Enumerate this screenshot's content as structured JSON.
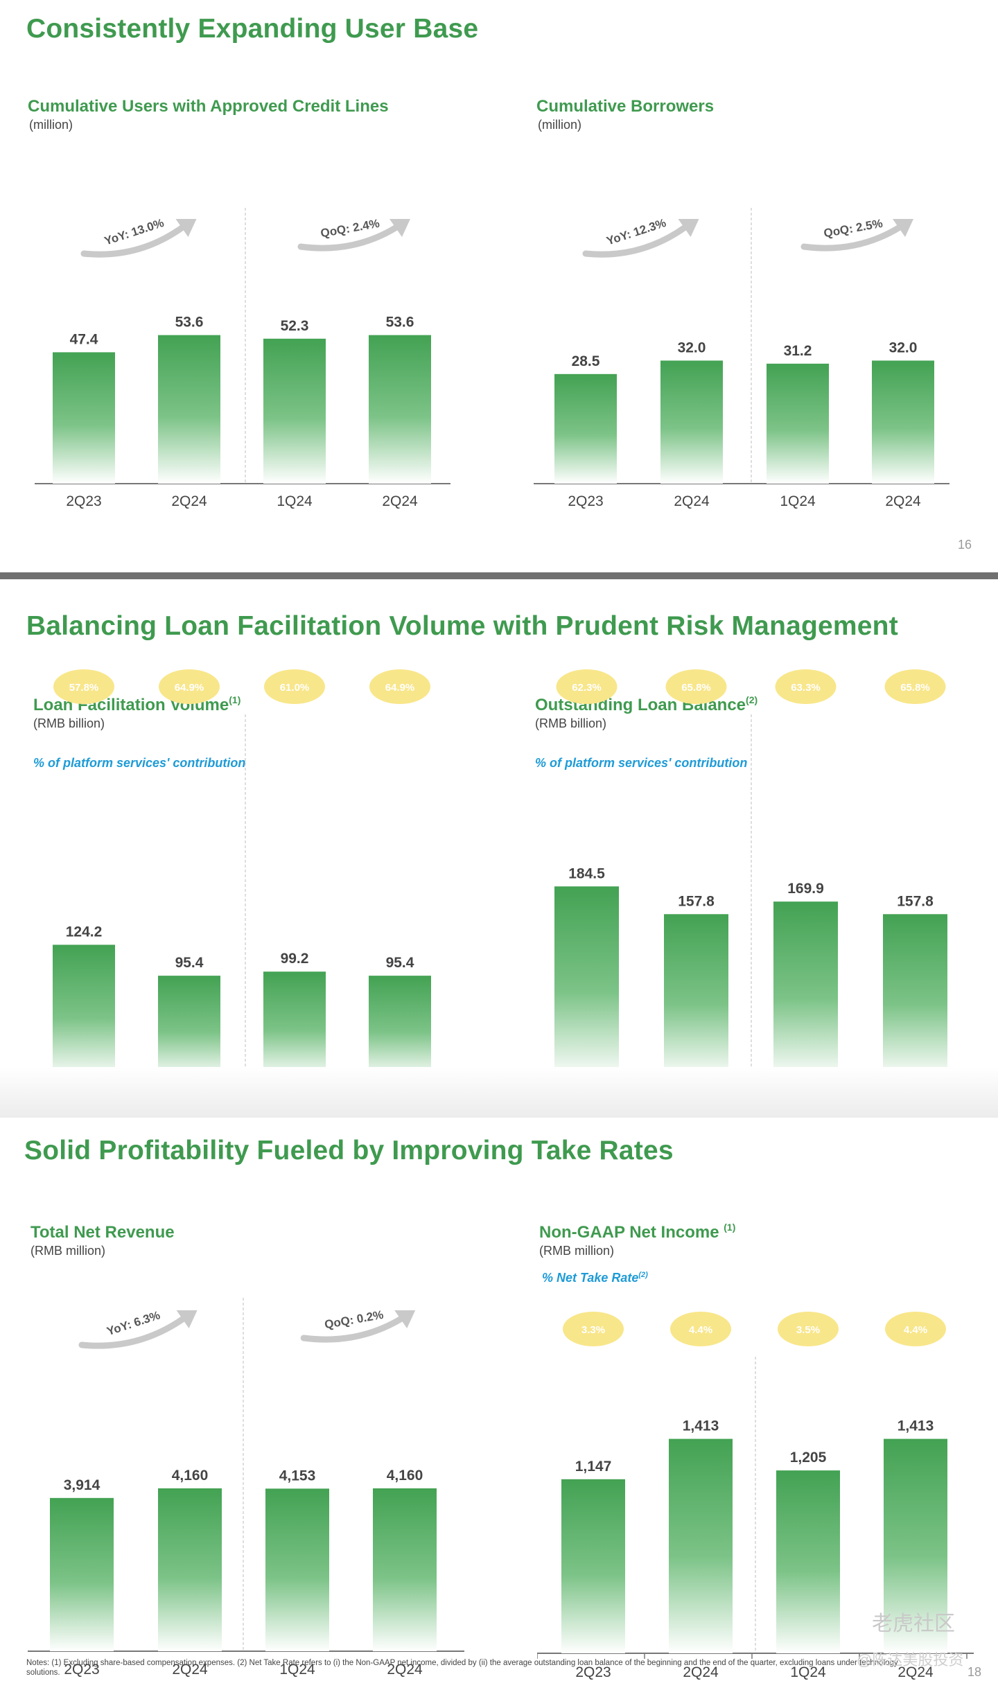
{
  "slides": [
    {
      "title": "Consistently Expanding User Base",
      "page_number": "16"
    },
    {
      "title": "Balancing Loan Facilitation Volume with Prudent Risk Management"
    },
    {
      "title": "Solid Profitability Fueled by Improving Take Rates",
      "page_number": "18"
    }
  ],
  "panels": [
    {
      "title": "Cumulative Users with Approved Credit Lines",
      "title_sup": "",
      "unit": "(million)",
      "metric_label": "",
      "metric_sup": ""
    },
    {
      "title": "Cumulative Borrowers",
      "title_sup": "",
      "unit": "(million)",
      "metric_label": "",
      "metric_sup": ""
    },
    {
      "title": "Loan Facilitation Volume",
      "title_sup": "(1)",
      "unit": "(RMB billion)",
      "metric_label": "% of platform services' contribution",
      "metric_sup": ""
    },
    {
      "title": "Outstanding Loan Balance",
      "title_sup": "(2)",
      "unit": "(RMB billion)",
      "metric_label": "% of platform services' contribution",
      "metric_sup": ""
    },
    {
      "title": "Total Net Revenue",
      "title_sup": "",
      "unit": "(RMB million)",
      "metric_label": "",
      "metric_sup": ""
    },
    {
      "title": "Non-GAAP Net Income",
      "title_sup": "(1)",
      "unit": "(RMB million)",
      "metric_label": "% Net Take Rate",
      "metric_sup": "(2)"
    }
  ],
  "chart_data": [
    {
      "type": "bar",
      "categories": [
        "2Q23",
        "2Q24",
        "1Q24",
        "2Q24"
      ],
      "values": [
        47.4,
        53.6,
        52.3,
        53.6
      ],
      "value_labels": [
        "47.4",
        "53.6",
        "52.3",
        "53.6"
      ],
      "growth": [
        {
          "label": "YoY: 13.0%"
        },
        {
          "label": "QoQ: 2.4%"
        }
      ],
      "pills": []
    },
    {
      "type": "bar",
      "categories": [
        "2Q23",
        "2Q24",
        "1Q24",
        "2Q24"
      ],
      "values": [
        28.5,
        32.0,
        31.2,
        32.0
      ],
      "value_labels": [
        "28.5",
        "32.0",
        "31.2",
        "32.0"
      ],
      "growth": [
        {
          "label": "YoY: 12.3%"
        },
        {
          "label": "QoQ: 2.5%"
        }
      ],
      "pills": []
    },
    {
      "type": "bar",
      "categories": [
        "2Q23",
        "2Q24",
        "1Q24",
        "2Q24"
      ],
      "values": [
        124.2,
        95.4,
        99.2,
        95.4
      ],
      "value_labels": [
        "124.2",
        "95.4",
        "99.2",
        "95.4"
      ],
      "growth": [],
      "pills": [
        "57.8%",
        "64.9%",
        "61.0%",
        "64.9%"
      ]
    },
    {
      "type": "bar",
      "categories": [
        "2Q23",
        "2Q24",
        "1Q24",
        "2Q24"
      ],
      "values": [
        184.5,
        157.8,
        169.9,
        157.8
      ],
      "value_labels": [
        "184.5",
        "157.8",
        "169.9",
        "157.8"
      ],
      "growth": [],
      "pills": [
        "62.3%",
        "65.8%",
        "63.3%",
        "65.8%"
      ]
    },
    {
      "type": "bar",
      "categories": [
        "2Q23",
        "2Q24",
        "1Q24",
        "2Q24"
      ],
      "values": [
        3914,
        4160,
        4153,
        4160
      ],
      "value_labels": [
        "3,914",
        "4,160",
        "4,153",
        "4,160"
      ],
      "growth": [
        {
          "label": "YoY: 6.3%"
        },
        {
          "label": "QoQ: 0.2%"
        }
      ],
      "pills": []
    },
    {
      "type": "bar",
      "categories": [
        "2Q23",
        "2Q24",
        "1Q24",
        "2Q24"
      ],
      "values": [
        1147,
        1413,
        1205,
        1413
      ],
      "value_labels": [
        "1,147",
        "1,413",
        "1,205",
        "1,413"
      ],
      "growth": [],
      "pills": [
        "3.3%",
        "4.4%",
        "3.5%",
        "4.4%"
      ]
    }
  ],
  "notes": "Notes: (1) Excluding share-based compensation expenses. (2) Net Take Rate refers to (i) the Non-GAAP net income, divided by (ii) the average outstanding loan balance of the beginning and the end of the quarter, excluding loans under technology solutions.",
  "watermark": {
    "main": "老虎社区",
    "sub": "@陈达美股投资"
  },
  "colors": {
    "title_green": "#3f9a4f",
    "bar_top": "#43a253",
    "bar_bottom": "#ffffff",
    "pill": "#f8e68a",
    "pill_text": "#ffffff",
    "metric_blue": "#1e9bd7",
    "arrow_gray": "#c9c9c9"
  }
}
